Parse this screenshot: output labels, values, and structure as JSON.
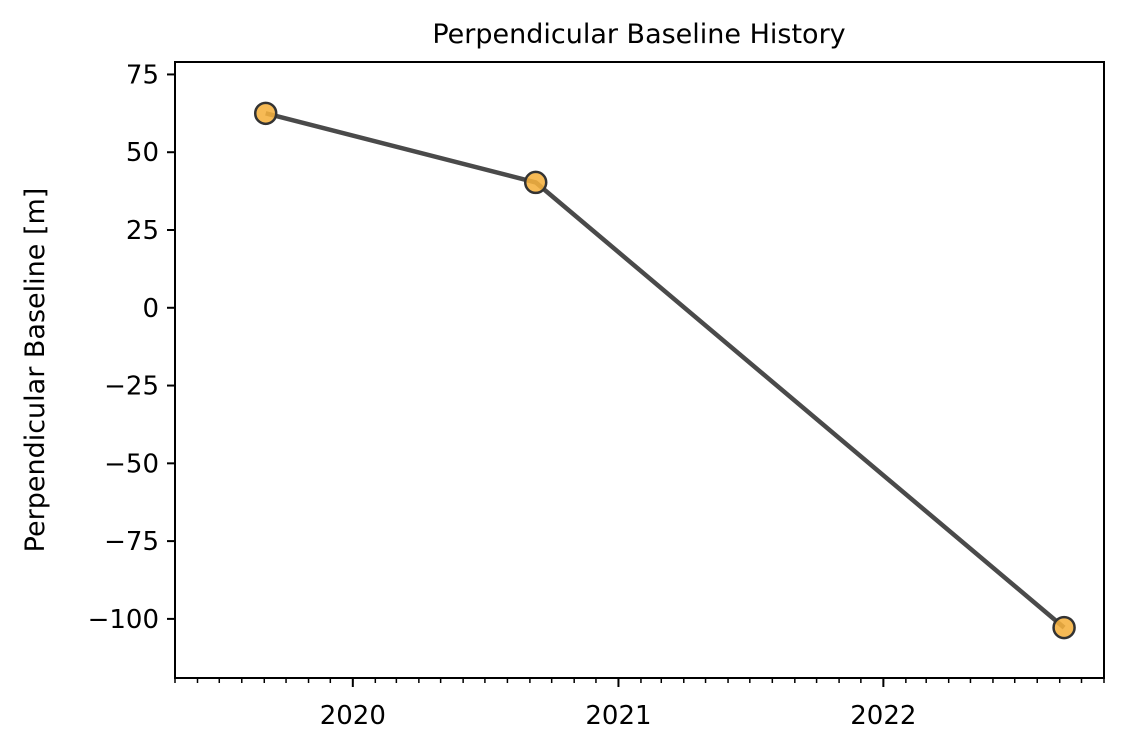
{
  "chart_data": {
    "type": "line",
    "title": "Perpendicular Baseline History",
    "xlabel": "",
    "ylabel": "Perpendicular Baseline [m]",
    "x_axis_type": "date",
    "x": [
      "2019-09-03",
      "2020-09-09",
      "2022-09-07"
    ],
    "series": [
      {
        "values": [
          62.5,
          40.3,
          -102.8
        ],
        "line_color": "#4a4a4a",
        "marker_color": "#f5b13d",
        "marker_edge_color": "#333333"
      }
    ],
    "xlim": [
      "2019-05-01",
      "2022-11-01"
    ],
    "ylim": [
      -119,
      79
    ],
    "xticks": [
      {
        "value": "2020-01-01",
        "label": "2020"
      },
      {
        "value": "2021-01-01",
        "label": "2021"
      },
      {
        "value": "2022-01-01",
        "label": "2022"
      }
    ],
    "x_minor_ticks": "monthly",
    "yticks": [
      {
        "value": 75,
        "label": "75"
      },
      {
        "value": 50,
        "label": "50"
      },
      {
        "value": 25,
        "label": "25"
      },
      {
        "value": 0,
        "label": "0"
      },
      {
        "value": -25,
        "label": "−25"
      },
      {
        "value": -50,
        "label": "−50"
      },
      {
        "value": -75,
        "label": "−75"
      },
      {
        "value": -100,
        "label": "−100"
      }
    ],
    "grid": false,
    "legend": "none"
  }
}
